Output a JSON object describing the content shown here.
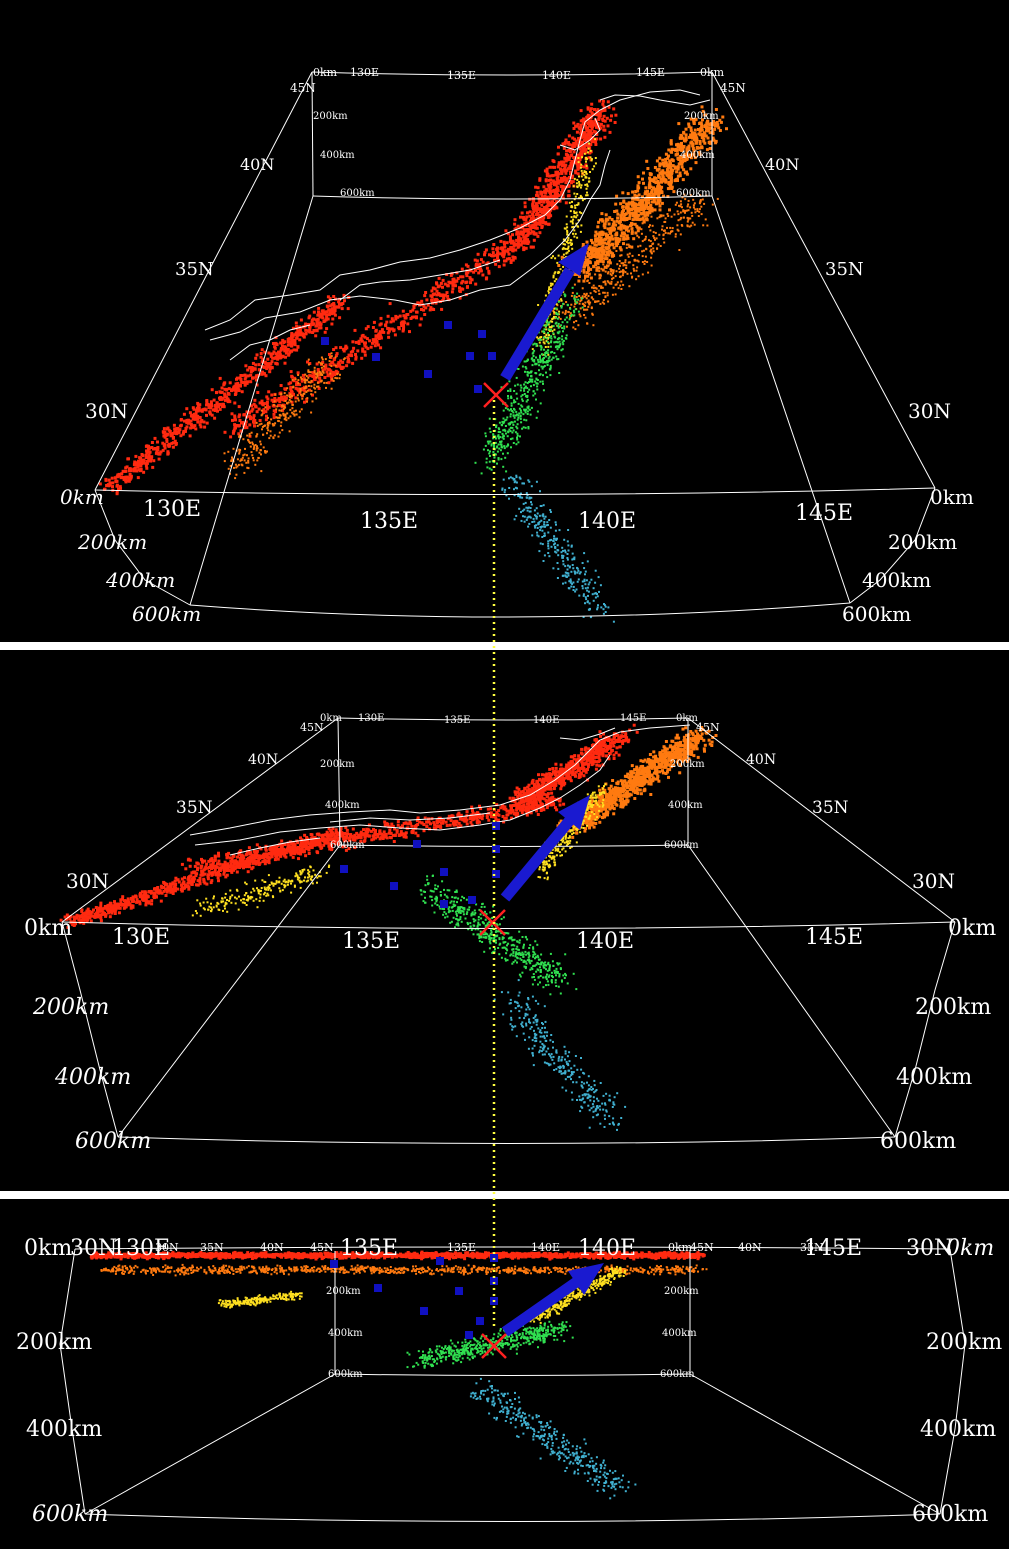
{
  "colors": {
    "background": "#000000",
    "frame": "#ffffff",
    "coastline": "#ffffff",
    "separator": "#ffffff",
    "depth_shallow": "#ff2a10",
    "depth_mid_shallow": "#ff7a10",
    "depth_mid": "#ffe020",
    "depth_intermediate": "#30e050",
    "depth_deep": "#40b0d0",
    "station_marker": "#1010c0",
    "plate_motion_arrow": "#1a1ad0",
    "epicenter_marker": "#ff2020",
    "guide_line": "#ffff40"
  },
  "panels": [
    {
      "name": "view-oblique-high",
      "lon_labels_far": [
        "0km",
        "130E",
        "135E",
        "140E",
        "145E",
        "0km"
      ],
      "lat_labels_left_far": [
        "45N"
      ],
      "lat_labels_right_far": [
        "45N"
      ],
      "depth_labels_far_left": [
        "200km",
        "400km",
        "600km"
      ],
      "depth_labels_far_right": [
        "200km",
        "400km",
        "600km"
      ],
      "lat_labels_left": [
        "40N",
        "35N",
        "30N"
      ],
      "lat_labels_right": [
        "40N",
        "35N",
        "30N"
      ],
      "lon_labels_near": [
        "130E",
        "135E",
        "140E",
        "145E"
      ],
      "depth_labels_near_left": [
        "0km",
        "200km",
        "400km",
        "600km"
      ],
      "depth_labels_near_right": [
        "0km",
        "200km",
        "400km",
        "600km"
      ]
    },
    {
      "name": "view-oblique-low",
      "lon_labels_far": [
        "0km",
        "130E",
        "135E",
        "140E",
        "145E",
        "0km"
      ],
      "lat_labels_left_far": [
        "45N"
      ],
      "lat_labels_right_far": [
        "45N"
      ],
      "depth_labels_far_left": [
        "200km",
        "400km",
        "600km"
      ],
      "depth_labels_far_right": [
        "200km",
        "400km",
        "600km"
      ],
      "lat_labels_left": [
        "40N",
        "35N",
        "30N"
      ],
      "lat_labels_right": [
        "40N",
        "35N",
        "30N"
      ],
      "lon_labels_near": [
        "130E",
        "135E",
        "140E",
        "145E"
      ],
      "depth_labels_near_left": [
        "0km",
        "200km",
        "400km",
        "600km"
      ],
      "depth_labels_near_right": [
        "0km",
        "200km",
        "400km",
        "600km"
      ]
    },
    {
      "name": "view-side",
      "top_labels_small": [
        "30N",
        "35N",
        "40N",
        "45N",
        "135E",
        "140E",
        "0km",
        "45N",
        "40N",
        "35N"
      ],
      "depth_labels_far_left": [
        "200km",
        "400km",
        "600km"
      ],
      "depth_labels_far_right": [
        "200km",
        "400km",
        "600km"
      ],
      "top_labels_large": [
        "0km",
        "30N",
        "130E",
        "135E",
        "140E",
        "145E",
        "30N",
        "0km"
      ],
      "depth_labels_near_left": [
        "200km",
        "400km",
        "600km"
      ],
      "depth_labels_near_right": [
        "200km",
        "400km",
        "600km"
      ]
    }
  ]
}
